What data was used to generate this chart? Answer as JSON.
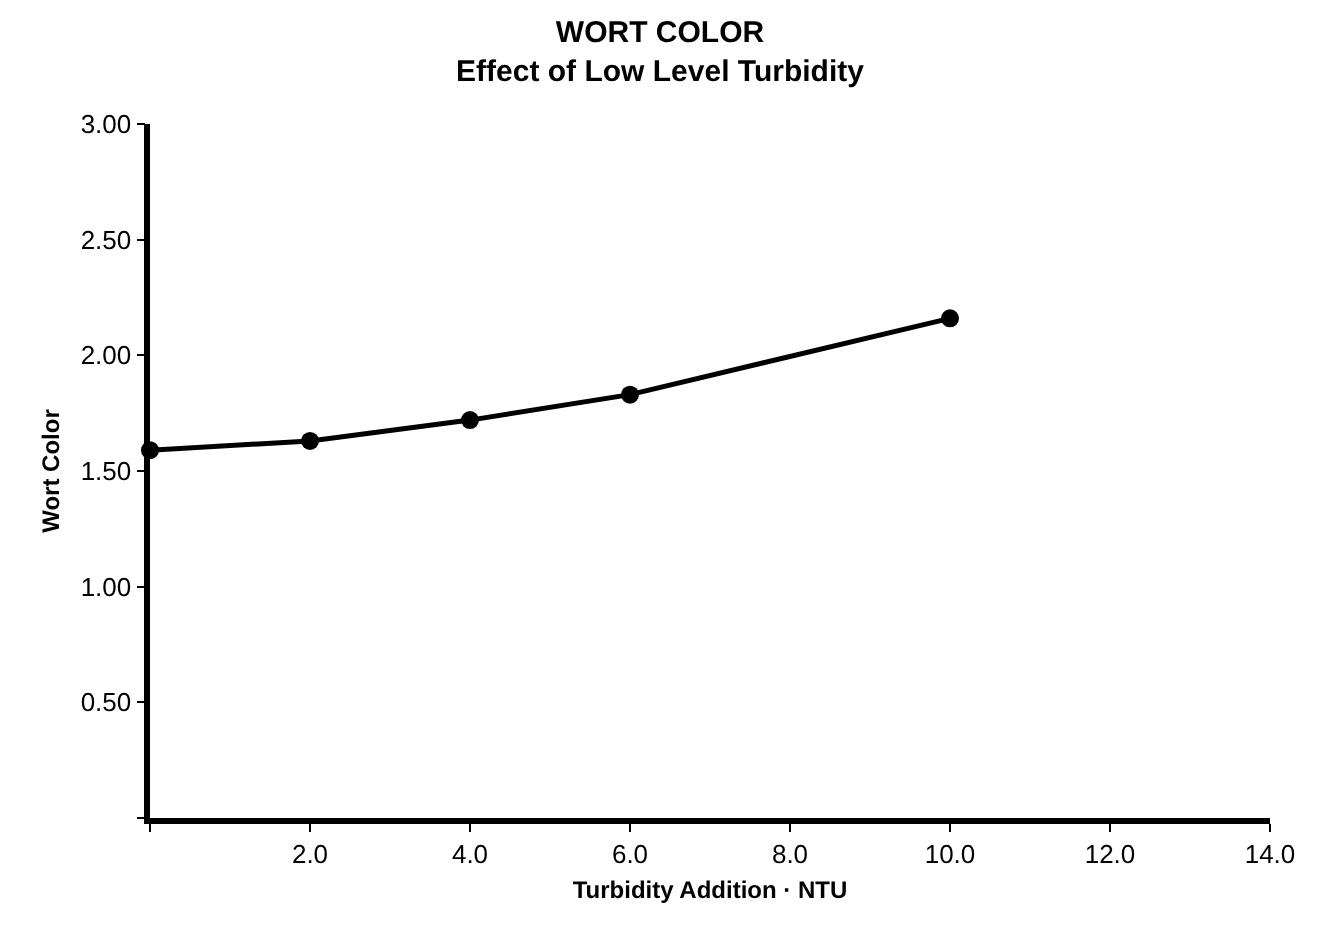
{
  "chart_data": {
    "type": "line",
    "title": "WORT COLOR",
    "subtitle": "Effect of Low Level Turbidity",
    "xlabel": "Turbidity Addition · NTU",
    "ylabel": "Wort Color",
    "x": [
      0,
      2,
      4,
      6,
      10
    ],
    "series": [
      {
        "color": "#000000",
        "values": [
          1.59,
          1.63,
          1.72,
          1.83,
          2.16
        ]
      }
    ],
    "xlim": [
      0,
      14
    ],
    "xticks": [
      {
        "value": 0,
        "label": null
      },
      {
        "value": 2,
        "label": "2.0"
      },
      {
        "value": 4,
        "label": "4.0"
      },
      {
        "value": 6,
        "label": "6.0"
      },
      {
        "value": 8,
        "label": "8.0"
      },
      {
        "value": 10,
        "label": "10.0"
      },
      {
        "value": 12,
        "label": "12.0"
      },
      {
        "value": 14,
        "label": "14.0"
      }
    ],
    "ylim": [
      0,
      3
    ],
    "yticks": [
      {
        "value": 0,
        "label": null
      },
      {
        "value": 0.5,
        "label": "0.50"
      },
      {
        "value": 1,
        "label": "1.00"
      },
      {
        "value": 1.5,
        "label": "1.50"
      },
      {
        "value": 2,
        "label": "2.00"
      },
      {
        "value": 2.5,
        "label": "2.50"
      },
      {
        "value": 3,
        "label": "3.00"
      }
    ],
    "marker": "circle",
    "line_style": "solid"
  }
}
